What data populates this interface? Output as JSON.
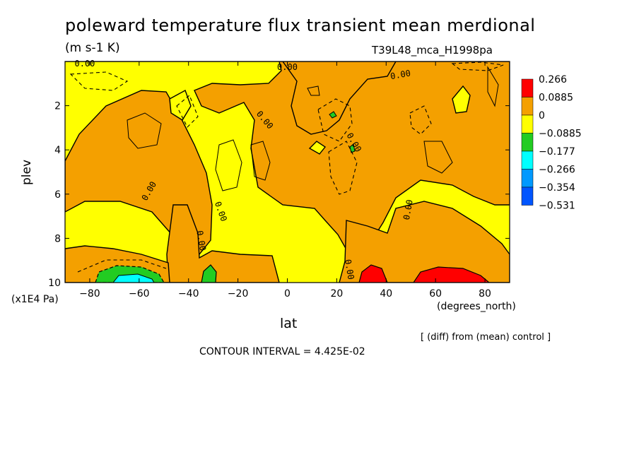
{
  "chart_data": {
    "type": "contour",
    "title": "poleward temperature flux transient mean merdional",
    "units": "(m s-1 K)",
    "run_label": "T39L48_mca_H1998pa",
    "xlabel": "lat",
    "xunit": "(degrees_north)",
    "ylabel": "plev",
    "yunit": "(x1E4 Pa)",
    "xlim": [
      -90,
      90
    ],
    "ylim": [
      10,
      0
    ],
    "x_ticks": [
      -80,
      -60,
      -40,
      -20,
      0,
      20,
      40,
      60,
      80
    ],
    "x_tick_labels": [
      "-80",
      "-60",
      "-40",
      "-20",
      "0",
      "20",
      "40",
      "60",
      "80"
    ],
    "y_ticks": [
      2,
      4,
      6,
      8,
      10
    ],
    "y_tick_labels": [
      "2",
      "4",
      "6",
      "8",
      "10"
    ],
    "contour_interval_text": "CONTOUR INTERVAL = 4.425E-02",
    "note": "[ (diff) from (mean) control ]",
    "contour_labels": [
      "0.00",
      "0.00",
      "0.00",
      "0.00",
      "0.00",
      "0.00",
      "0.00",
      "0.00",
      "0.00",
      "0.00"
    ],
    "colorbar": {
      "levels": [
        "0.266",
        "0.0885",
        "0",
        "-0.0885",
        "-0.177",
        "-0.266",
        "-0.354",
        "-0.531"
      ],
      "colors": [
        "#ff0000",
        "#f4a000",
        "#ffff00",
        "#22cc22",
        "#00ffff",
        "#0099ff",
        "#0055ff"
      ]
    },
    "colors": {
      "positive": "#f4a000",
      "negative": "#ffff00",
      "strong_positive": "#ff0000",
      "weak_negative_green": "#22cc22",
      "cyan": "#00ffff"
    }
  }
}
